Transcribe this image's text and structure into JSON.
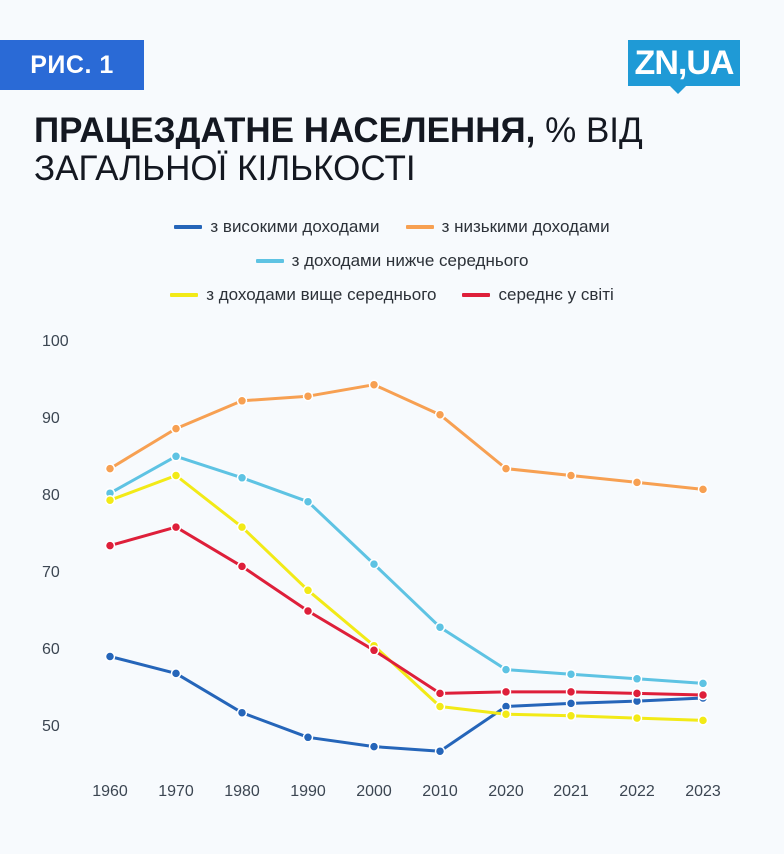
{
  "header": {
    "figure_label": "РИС. 1",
    "logo_text": "ZN,UA",
    "title_bold": "ПРАЦЕЗДАТНЕ НАСЕЛЕННЯ,",
    "title_rest": " % ВІД ЗАГАЛЬНОЇ КІЛЬКОСТІ"
  },
  "colors": {
    "badge": "#2a6ad6",
    "logo": "#1f9ad6",
    "high": "#2565b9",
    "low": "#f7a052",
    "lower_middle": "#5ec3e3",
    "upper_middle": "#f2ea17",
    "world": "#de1f3a"
  },
  "chart_data": {
    "type": "line",
    "title": "ПРАЦЕЗДАТНЕ НАСЕЛЕННЯ, % ВІД ЗАГАЛЬНОЇ КІЛЬКОСТІ",
    "xlabel": "",
    "ylabel": "",
    "x": [
      "1960",
      "1970",
      "1980",
      "1990",
      "2000",
      "2010",
      "2020",
      "2021",
      "2022",
      "2023"
    ],
    "y_ticks": [
      "50",
      "60",
      "70",
      "80",
      "90",
      "100"
    ],
    "ylim": [
      50,
      100
    ],
    "grid": false,
    "legend_position": "top",
    "series": [
      {
        "name": "з високими доходами",
        "color": "#2565b9",
        "values": [
          58.9,
          56.7,
          51.6,
          48.4,
          47.2,
          46.6,
          52.4,
          52.8,
          53.1,
          53.5
        ]
      },
      {
        "name": "з низькими доходами",
        "color": "#f7a052",
        "values": [
          83.3,
          88.5,
          92.1,
          92.7,
          94.2,
          90.3,
          83.3,
          82.4,
          81.5,
          80.6
        ]
      },
      {
        "name": "з доходами нижче середнього",
        "color": "#5ec3e3",
        "values": [
          80.1,
          84.9,
          82.1,
          79.0,
          70.9,
          62.7,
          57.2,
          56.6,
          56.0,
          55.4
        ]
      },
      {
        "name": "з доходами вище середнього",
        "color": "#f2ea17",
        "values": [
          79.2,
          82.4,
          75.7,
          67.5,
          60.3,
          52.4,
          51.4,
          51.2,
          50.9,
          50.6
        ]
      },
      {
        "name": "середнє у світі",
        "color": "#de1f3a",
        "values": [
          73.3,
          75.7,
          70.6,
          64.8,
          59.7,
          54.1,
          54.3,
          54.3,
          54.1,
          53.9
        ]
      }
    ]
  }
}
